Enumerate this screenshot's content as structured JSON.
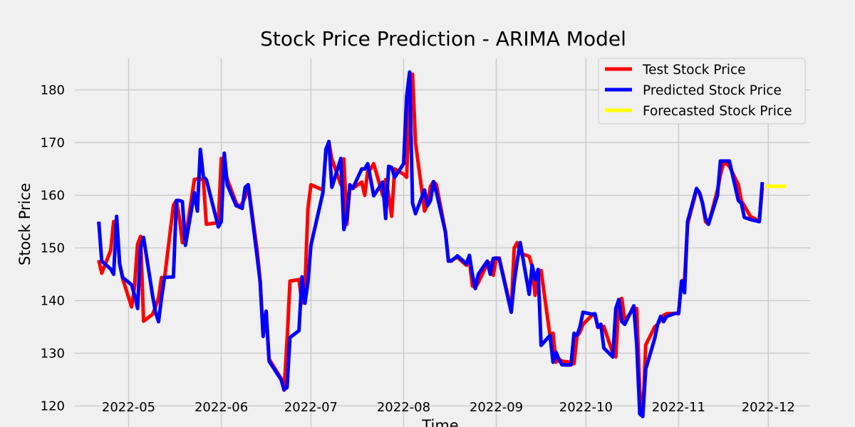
{
  "chart_data": {
    "type": "line",
    "title": "Stock Price Prediction - ARIMA Model",
    "xlabel": "Time",
    "ylabel": "Stock Price",
    "xlim": [
      "2022-04-13",
      "2022-12-15"
    ],
    "ylim": [
      116,
      186
    ],
    "x_ticks": [
      "2022-05-01",
      "2022-06-01",
      "2022-07-01",
      "2022-08-01",
      "2022-09-01",
      "2022-10-01",
      "2022-11-01",
      "2022-12-01"
    ],
    "x_tick_labels": [
      "2022-05",
      "2022-06",
      "2022-07",
      "2022-08",
      "2022-09",
      "2022-10",
      "2022-11",
      "2022-12"
    ],
    "y_ticks": [
      120,
      130,
      140,
      150,
      160,
      170,
      180
    ],
    "y_tick_labels": [
      "120",
      "130",
      "140",
      "150",
      "160",
      "170",
      "180"
    ],
    "grid": true,
    "legend_position": "top-right",
    "series": [
      {
        "name": "Test Stock Price",
        "color": "#ff0000",
        "x": [
          "2022-04-21",
          "2022-04-22",
          "2022-04-25",
          "2022-04-26",
          "2022-04-27",
          "2022-04-28",
          "2022-04-29",
          "2022-05-02",
          "2022-05-03",
          "2022-05-04",
          "2022-05-05",
          "2022-05-06",
          "2022-05-09",
          "2022-05-10",
          "2022-05-11",
          "2022-05-12",
          "2022-05-13",
          "2022-05-16",
          "2022-05-17",
          "2022-05-18",
          "2022-05-19",
          "2022-05-20",
          "2022-05-23",
          "2022-05-24",
          "2022-05-25",
          "2022-05-26",
          "2022-05-27",
          "2022-05-31",
          "2022-06-01",
          "2022-06-02",
          "2022-06-03",
          "2022-06-06",
          "2022-06-07",
          "2022-06-08",
          "2022-06-09",
          "2022-06-10",
          "2022-06-13",
          "2022-06-14",
          "2022-06-15",
          "2022-06-16",
          "2022-06-17",
          "2022-06-21",
          "2022-06-22",
          "2022-06-23",
          "2022-06-24",
          "2022-06-27",
          "2022-06-28",
          "2022-06-29",
          "2022-06-30",
          "2022-07-01",
          "2022-07-05",
          "2022-07-06",
          "2022-07-07",
          "2022-07-08",
          "2022-07-11",
          "2022-07-12",
          "2022-07-13",
          "2022-07-14",
          "2022-07-15",
          "2022-07-18",
          "2022-07-19",
          "2022-07-20",
          "2022-07-21",
          "2022-07-22",
          "2022-07-25",
          "2022-07-26",
          "2022-07-27",
          "2022-07-28",
          "2022-07-29",
          "2022-08-01",
          "2022-08-02",
          "2022-08-03",
          "2022-08-04",
          "2022-08-05",
          "2022-08-08",
          "2022-08-09",
          "2022-08-10",
          "2022-08-11",
          "2022-08-12",
          "2022-08-15",
          "2022-08-16",
          "2022-08-17",
          "2022-08-18",
          "2022-08-19",
          "2022-08-22",
          "2022-08-23",
          "2022-08-24",
          "2022-08-25",
          "2022-08-26",
          "2022-08-29",
          "2022-08-30",
          "2022-08-31",
          "2022-09-01",
          "2022-09-02",
          "2022-09-06",
          "2022-09-07",
          "2022-09-08",
          "2022-09-09",
          "2022-09-12",
          "2022-09-13",
          "2022-09-14",
          "2022-09-15",
          "2022-09-16",
          "2022-09-19",
          "2022-09-20",
          "2022-09-21",
          "2022-09-22",
          "2022-09-23",
          "2022-09-26",
          "2022-09-27",
          "2022-09-28",
          "2022-09-29",
          "2022-09-30",
          "2022-10-03",
          "2022-10-04",
          "2022-10-05",
          "2022-10-06",
          "2022-10-07",
          "2022-10-10",
          "2022-10-11",
          "2022-10-12",
          "2022-10-13",
          "2022-10-14",
          "2022-10-17",
          "2022-10-18",
          "2022-10-19",
          "2022-10-20",
          "2022-10-21",
          "2022-10-24",
          "2022-10-25",
          "2022-10-26",
          "2022-10-27",
          "2022-10-28",
          "2022-10-31",
          "2022-11-01",
          "2022-11-02",
          "2022-11-03",
          "2022-11-04",
          "2022-11-07",
          "2022-11-08",
          "2022-11-09",
          "2022-11-10",
          "2022-11-11",
          "2022-11-14",
          "2022-11-15",
          "2022-11-16",
          "2022-11-17",
          "2022-11-18",
          "2022-11-21",
          "2022-11-22",
          "2022-11-23",
          "2022-11-25",
          "2022-11-28",
          "2022-11-29"
        ],
        "y": [
          147.7,
          145.2,
          149.5,
          155.0,
          155.1,
          147.1,
          144.2,
          138.8,
          142.8,
          150.7,
          152.2,
          136.1,
          137.4,
          138.8,
          140.5,
          144.4,
          144.2,
          158.1,
          159.0,
          155.7,
          151.0,
          151.7,
          163.0,
          163.1,
          163.1,
          163.0,
          154.5,
          154.8,
          167.0,
          165.0,
          163.0,
          158.6,
          157.7,
          158.5,
          159.6,
          162.0,
          149.5,
          143.8,
          133.8,
          138.0,
          128.9,
          125.2,
          123.0,
          132.4,
          143.7,
          144.0,
          139.5,
          142.5,
          157.5,
          162.0,
          161.0,
          168.0,
          170.0,
          166.9,
          162.0,
          166.9,
          154.5,
          161.5,
          161.3,
          162.5,
          160.0,
          164.6,
          165.0,
          166.0,
          160.0,
          163.0,
          160.0,
          156.0,
          165.0,
          164.0,
          163.4,
          178.5,
          183.0,
          170.0,
          157.0,
          158.3,
          161.7,
          162.6,
          162.0,
          153.0,
          147.5,
          147.5,
          148.0,
          148.2,
          146.7,
          147.6,
          142.8,
          142.5,
          143.4,
          147.0,
          147.2,
          144.8,
          148.0,
          148.1,
          138.2,
          150.0,
          151.0,
          149.0,
          148.4,
          146.5,
          141.0,
          145.7,
          145.7,
          133.3,
          133.8,
          128.3,
          128.9,
          128.5,
          128.3,
          128.0,
          133.2,
          134.0,
          135.5,
          137.2,
          137.3,
          134.9,
          135.0,
          135.1,
          130.0,
          129.3,
          140.0,
          140.4,
          136.2,
          138.5,
          138.5,
          122.8,
          118.0,
          131.6,
          135.0,
          135.5,
          136.4,
          137.2,
          137.5,
          137.6,
          137.5,
          143.7,
          144.0,
          154.5,
          161.0,
          160.5,
          158.6,
          155.0,
          154.5,
          161.0,
          163.8,
          166.0,
          166.0,
          165.5,
          162.0,
          159.0,
          158.0,
          156.0,
          155.1,
          161.5
        ]
      },
      {
        "name": "Predicted Stock Price",
        "color": "#0000ff",
        "x": [
          "2022-04-21",
          "2022-04-22",
          "2022-04-25",
          "2022-04-26",
          "2022-04-27",
          "2022-04-28",
          "2022-04-29",
          "2022-05-02",
          "2022-05-03",
          "2022-05-04",
          "2022-05-05",
          "2022-05-06",
          "2022-05-09",
          "2022-05-10",
          "2022-05-11",
          "2022-05-12",
          "2022-05-13",
          "2022-05-16",
          "2022-05-17",
          "2022-05-18",
          "2022-05-19",
          "2022-05-20",
          "2022-05-23",
          "2022-05-24",
          "2022-05-25",
          "2022-05-26",
          "2022-05-27",
          "2022-05-31",
          "2022-06-01",
          "2022-06-02",
          "2022-06-03",
          "2022-06-06",
          "2022-06-07",
          "2022-06-08",
          "2022-06-09",
          "2022-06-10",
          "2022-06-13",
          "2022-06-14",
          "2022-06-15",
          "2022-06-16",
          "2022-06-17",
          "2022-06-21",
          "2022-06-22",
          "2022-06-23",
          "2022-06-24",
          "2022-06-27",
          "2022-06-28",
          "2022-06-29",
          "2022-06-30",
          "2022-07-01",
          "2022-07-05",
          "2022-07-06",
          "2022-07-07",
          "2022-07-08",
          "2022-07-11",
          "2022-07-12",
          "2022-07-13",
          "2022-07-14",
          "2022-07-15",
          "2022-07-18",
          "2022-07-19",
          "2022-07-20",
          "2022-07-21",
          "2022-07-22",
          "2022-07-25",
          "2022-07-26",
          "2022-07-27",
          "2022-07-28",
          "2022-07-29",
          "2022-08-01",
          "2022-08-02",
          "2022-08-03",
          "2022-08-04",
          "2022-08-05",
          "2022-08-08",
          "2022-08-09",
          "2022-08-10",
          "2022-08-11",
          "2022-08-12",
          "2022-08-15",
          "2022-08-16",
          "2022-08-17",
          "2022-08-18",
          "2022-08-19",
          "2022-08-22",
          "2022-08-23",
          "2022-08-24",
          "2022-08-25",
          "2022-08-26",
          "2022-08-29",
          "2022-08-30",
          "2022-08-31",
          "2022-09-01",
          "2022-09-02",
          "2022-09-06",
          "2022-09-07",
          "2022-09-08",
          "2022-09-09",
          "2022-09-12",
          "2022-09-13",
          "2022-09-14",
          "2022-09-15",
          "2022-09-16",
          "2022-09-19",
          "2022-09-20",
          "2022-09-21",
          "2022-09-22",
          "2022-09-23",
          "2022-09-26",
          "2022-09-27",
          "2022-09-28",
          "2022-09-29",
          "2022-09-30",
          "2022-10-03",
          "2022-10-04",
          "2022-10-05",
          "2022-10-06",
          "2022-10-07",
          "2022-10-10",
          "2022-10-11",
          "2022-10-12",
          "2022-10-13",
          "2022-10-14",
          "2022-10-17",
          "2022-10-18",
          "2022-10-19",
          "2022-10-20",
          "2022-10-21",
          "2022-10-24",
          "2022-10-25",
          "2022-10-26",
          "2022-10-27",
          "2022-10-28",
          "2022-10-31",
          "2022-11-01",
          "2022-11-02",
          "2022-11-03",
          "2022-11-04",
          "2022-11-07",
          "2022-11-08",
          "2022-11-09",
          "2022-11-10",
          "2022-11-11",
          "2022-11-14",
          "2022-11-15",
          "2022-11-16",
          "2022-11-17",
          "2022-11-18",
          "2022-11-21",
          "2022-11-22",
          "2022-11-23",
          "2022-11-25",
          "2022-11-28",
          "2022-11-29"
        ],
        "y": [
          155.0,
          147.5,
          146.0,
          145.0,
          156.0,
          147.0,
          144.4,
          143.0,
          141.0,
          138.5,
          150.0,
          152.0,
          141.0,
          137.8,
          136.0,
          140.5,
          144.4,
          144.5,
          159.0,
          159.0,
          158.8,
          150.5,
          160.5,
          157.0,
          168.7,
          163.5,
          163.0,
          154.0,
          155.0,
          168.0,
          162.0,
          158.0,
          157.9,
          157.5,
          161.5,
          162.0,
          148.3,
          143.6,
          133.2,
          138.0,
          128.5,
          125.0,
          123.1,
          123.5,
          133.0,
          134.3,
          144.5,
          139.5,
          143.5,
          150.5,
          160.5,
          168.7,
          170.2,
          161.5,
          167.0,
          153.5,
          155.6,
          162.0,
          161.3,
          165.0,
          165.0,
          166.0,
          163.0,
          159.9,
          162.5,
          155.6,
          165.5,
          165.3,
          163.4,
          166.0,
          178.7,
          183.4,
          158.5,
          156.5,
          161.0,
          158.0,
          159.0,
          162.6,
          160.5,
          153.0,
          147.5,
          147.6,
          148.0,
          148.5,
          147.0,
          148.6,
          145.0,
          142.3,
          145.0,
          147.5,
          145.0,
          148.0,
          148.1,
          147.9,
          137.8,
          143.5,
          147.5,
          151.0,
          141.2,
          146.7,
          144.0,
          145.9,
          131.5,
          133.4,
          128.3,
          130.2,
          128.8,
          127.8,
          127.8,
          133.8,
          133.4,
          135.0,
          137.8,
          137.4,
          137.5,
          135.0,
          135.5,
          131.0,
          129.3,
          138.5,
          140.2,
          136.0,
          135.5,
          139.0,
          131.5,
          118.5,
          118.0,
          127.0,
          132.8,
          135.5,
          137.0,
          136.0,
          137.0,
          137.6,
          137.6,
          143.7,
          141.5,
          155.0,
          161.3,
          160.5,
          158.4,
          155.7,
          154.5,
          160.0,
          166.5,
          166.5,
          166.5,
          166.5,
          159.0,
          158.5,
          155.8,
          155.4,
          155.0,
          162.5
        ]
      },
      {
        "name": "Forecasted Stock Price",
        "color": "#ffff00",
        "x": [
          "2022-11-30",
          "2022-12-01",
          "2022-12-02",
          "2022-12-05",
          "2022-12-06",
          "2022-12-07"
        ],
        "y": [
          161.7,
          161.7,
          161.7,
          161.7,
          161.7,
          161.7
        ]
      }
    ]
  }
}
